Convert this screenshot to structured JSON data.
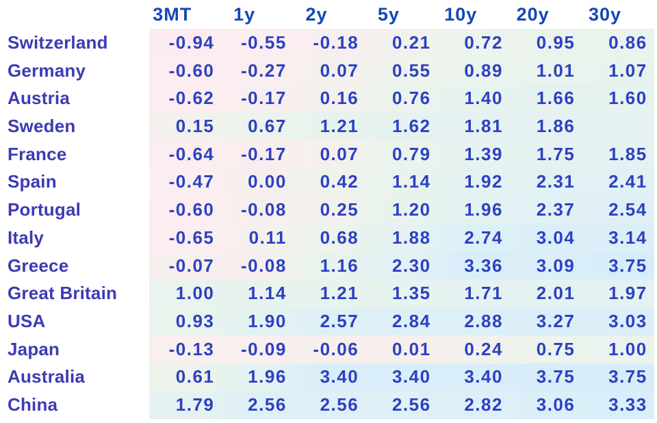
{
  "page": {
    "background": "#ffffff"
  },
  "text_colors": {
    "header": "#1447b5",
    "label": "#3c3bb3",
    "value": "#2c41c2"
  },
  "chart_data": {
    "type": "heatmap",
    "layout_hints": {
      "grid": false,
      "legend": "none",
      "value_format": "2 decimals",
      "negative_color": "#fcecf1",
      "neutral_color": "#f6efed",
      "mid_color": "#e8f3ee",
      "high_color": "#d8ecf9"
    },
    "columns": [
      "3MT",
      "1y",
      "2y",
      "5y",
      "10y",
      "20y",
      "30y"
    ],
    "rows": [
      {
        "country": "Switzerland",
        "values": [
          -0.94,
          -0.55,
          -0.18,
          0.21,
          0.72,
          0.95,
          0.86
        ]
      },
      {
        "country": "Germany",
        "values": [
          -0.6,
          -0.27,
          0.07,
          0.55,
          0.89,
          1.01,
          1.07
        ]
      },
      {
        "country": "Austria",
        "values": [
          -0.62,
          -0.17,
          0.16,
          0.76,
          1.4,
          1.66,
          1.6
        ]
      },
      {
        "country": "Sweden",
        "values": [
          0.15,
          0.67,
          1.21,
          1.62,
          1.81,
          1.86,
          null
        ]
      },
      {
        "country": "France",
        "values": [
          -0.64,
          -0.17,
          0.07,
          0.79,
          1.39,
          1.75,
          1.85
        ]
      },
      {
        "country": "Spain",
        "values": [
          -0.47,
          0.0,
          0.42,
          1.14,
          1.92,
          2.31,
          2.41
        ]
      },
      {
        "country": "Portugal",
        "values": [
          -0.6,
          -0.08,
          0.25,
          1.2,
          1.96,
          2.37,
          2.54
        ]
      },
      {
        "country": "Italy",
        "values": [
          -0.65,
          0.11,
          0.68,
          1.88,
          2.74,
          3.04,
          3.14
        ]
      },
      {
        "country": "Greece",
        "values": [
          -0.07,
          -0.08,
          1.16,
          2.3,
          3.36,
          3.09,
          3.75
        ]
      },
      {
        "country": "Great Britain",
        "values": [
          1.0,
          1.14,
          1.21,
          1.35,
          1.71,
          2.01,
          1.97
        ]
      },
      {
        "country": "USA",
        "values": [
          0.93,
          1.9,
          2.57,
          2.84,
          2.88,
          3.27,
          3.03
        ]
      },
      {
        "country": "Japan",
        "values": [
          -0.13,
          -0.09,
          -0.06,
          0.01,
          0.24,
          0.75,
          1.0
        ]
      },
      {
        "country": "Australia",
        "values": [
          0.61,
          1.96,
          3.4,
          3.4,
          3.4,
          3.75,
          3.75
        ]
      },
      {
        "country": "China",
        "values": [
          1.79,
          2.56,
          2.56,
          2.56,
          2.82,
          3.06,
          3.33
        ]
      }
    ],
    "color_scale": {
      "stops": [
        {
          "v": -1.0,
          "c": [
            252,
            236,
            241
          ]
        },
        {
          "v": -0.3,
          "c": [
            251,
            238,
            240
          ]
        },
        {
          "v": 0.0,
          "c": [
            246,
            239,
            237
          ]
        },
        {
          "v": 0.5,
          "c": [
            239,
            243,
            236
          ]
        },
        {
          "v": 1.2,
          "c": [
            232,
            243,
            238
          ]
        },
        {
          "v": 2.0,
          "c": [
            228,
            242,
            242
          ]
        },
        {
          "v": 2.6,
          "c": [
            223,
            240,
            246
          ]
        },
        {
          "v": 3.4,
          "c": [
            218,
            238,
            249
          ]
        },
        {
          "v": 3.8,
          "c": [
            216,
            236,
            249
          ]
        }
      ]
    }
  }
}
